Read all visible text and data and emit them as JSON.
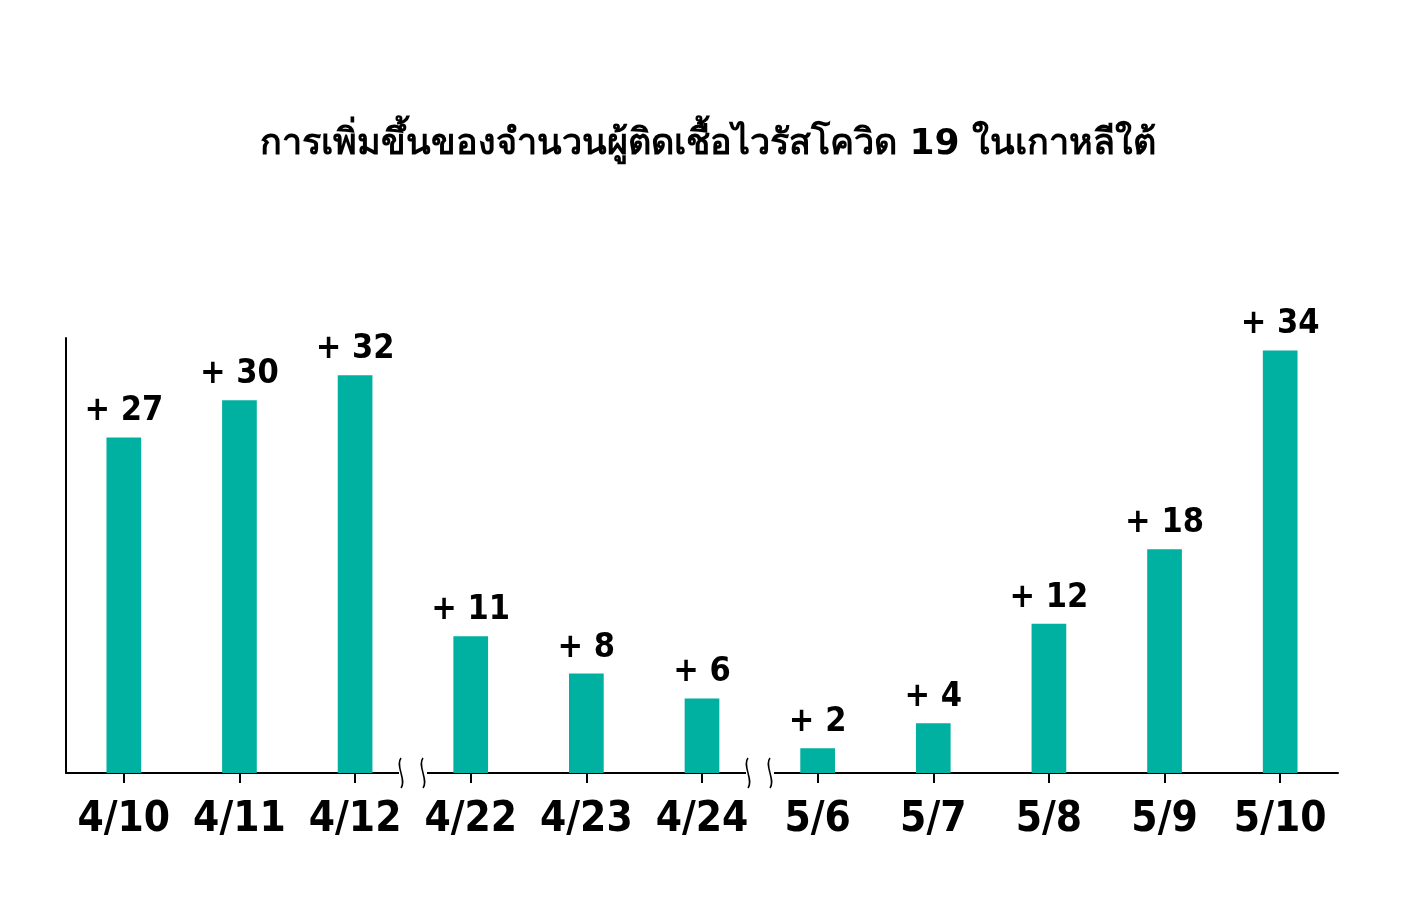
{
  "chart_data": {
    "type": "bar",
    "title": "การเพิ่มขึ้นของจำนวนผู้ติดเชื้อไวรัสโควิด 19 ในเกาหลีใต้",
    "categories": [
      "4/10",
      "4/11",
      "4/12",
      "4/22",
      "4/23",
      "4/24",
      "5/6",
      "5/7",
      "5/8",
      "5/9",
      "5/10"
    ],
    "values": [
      27,
      30,
      32,
      11,
      8,
      6,
      2,
      4,
      12,
      18,
      34
    ],
    "value_labels": [
      "+ 27",
      "+ 30",
      "+ 32",
      "+ 11",
      "+ 8",
      "+ 6",
      "+ 2",
      "+ 4",
      "+ 12",
      "+ 18",
      "+ 34"
    ],
    "color": "#00b0a0",
    "tick_labels": "x"
  }
}
